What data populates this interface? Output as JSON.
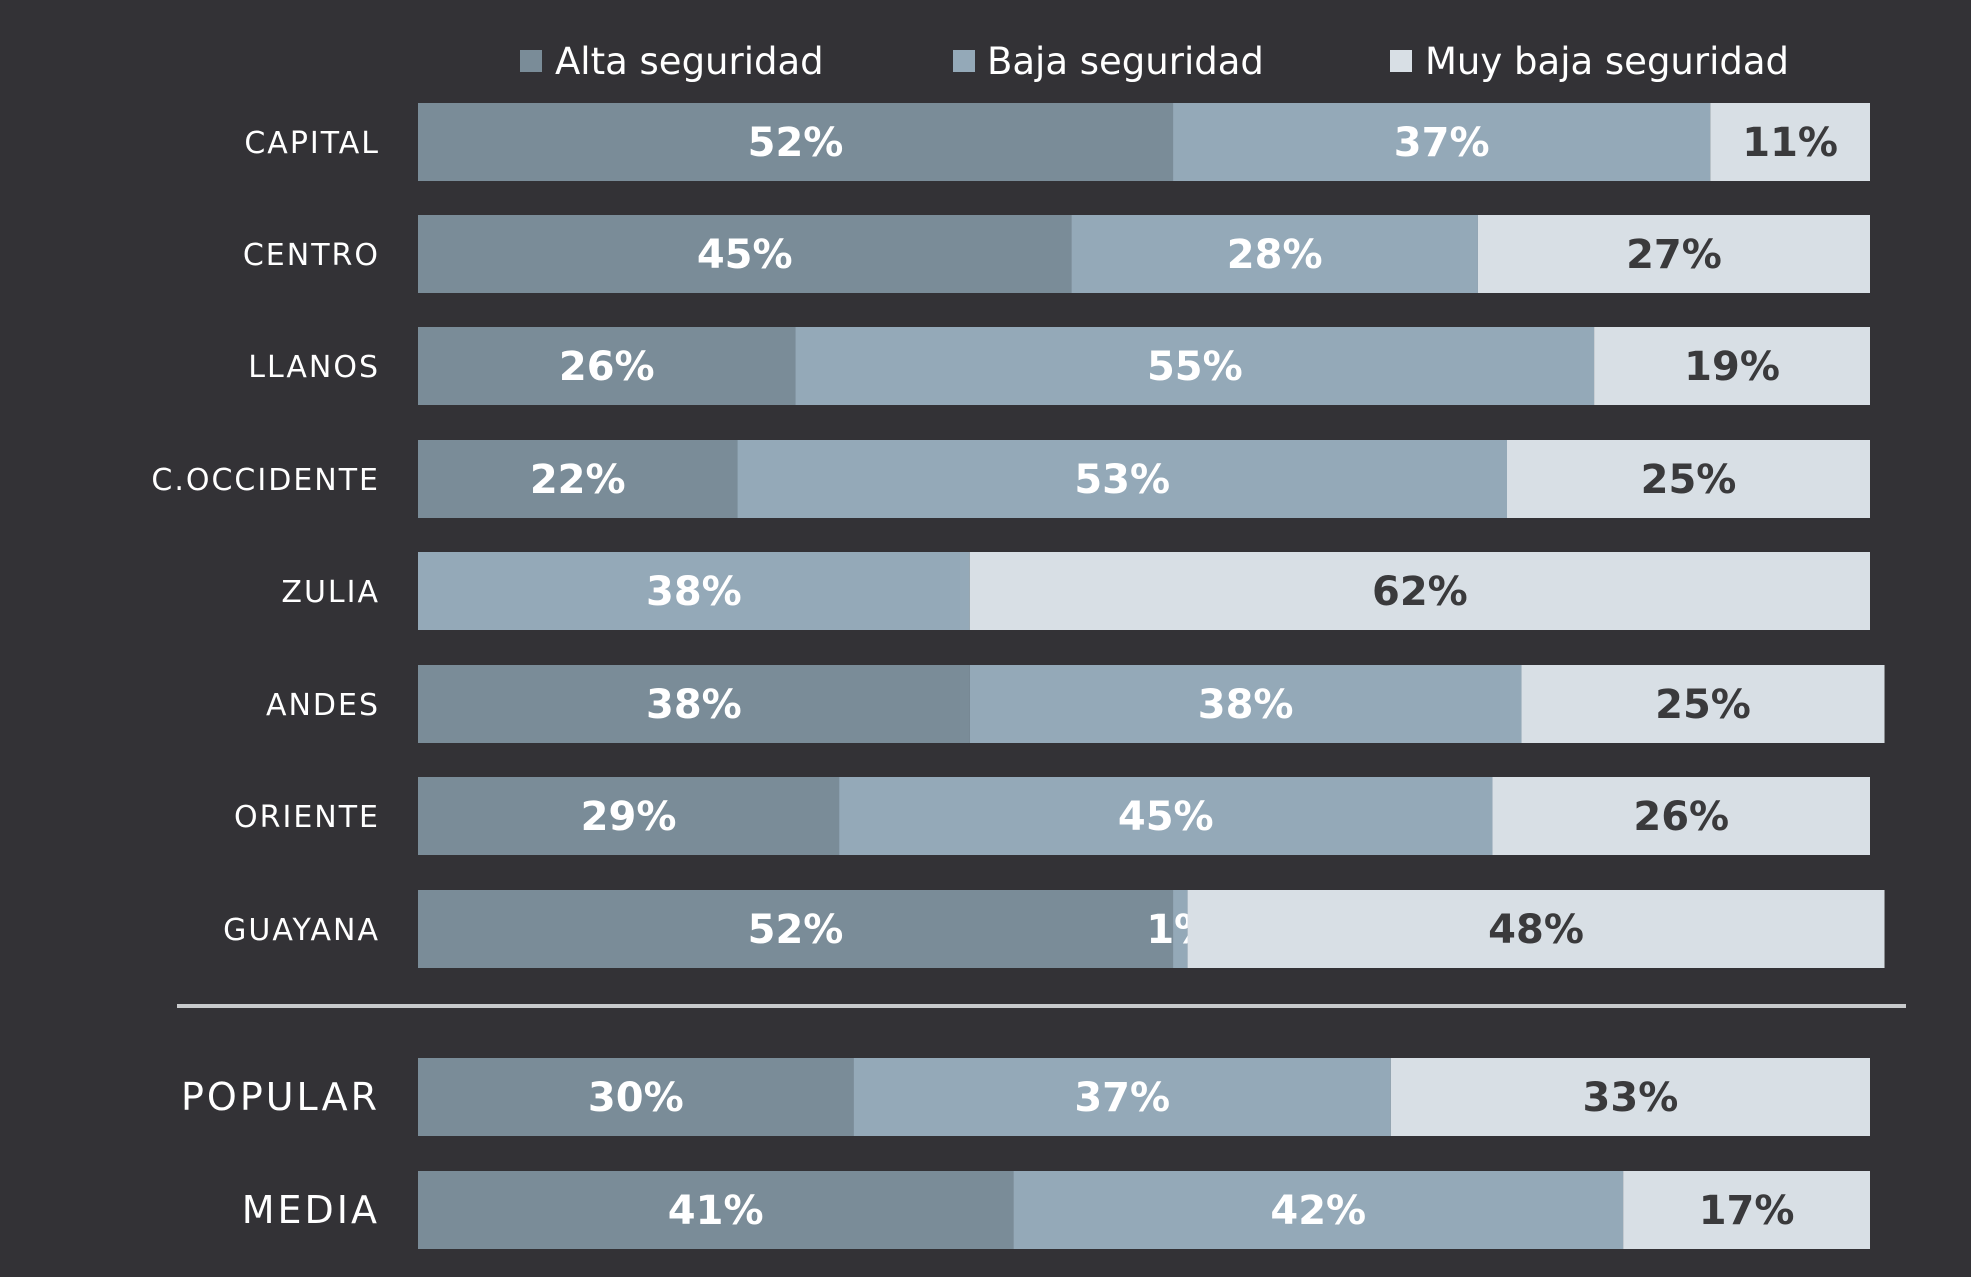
{
  "chart_data": {
    "type": "bar",
    "orientation": "horizontal",
    "stacked": true,
    "percent": true,
    "title": "",
    "xlabel": "",
    "ylabel": "",
    "xlim": [
      0,
      100
    ],
    "grid": false,
    "legend_position": "top",
    "colors": {
      "background": "#333236",
      "series": [
        "#7a8c98",
        "#94a9b8",
        "#d8dfe5"
      ],
      "value_text": [
        "#ffffff",
        "#ffffff",
        "#3a3a3c"
      ],
      "divider": "#c8cacc"
    },
    "groups": [
      {
        "categories": [
          "CAPITAL",
          "CENTRO",
          "LLANOS",
          "C.OCCIDENTE",
          "ZULIA",
          "ANDES",
          "ORIENTE",
          "GUAYANA"
        ],
        "series": [
          {
            "name": "Alta seguridad",
            "values": [
              52,
              45,
              26,
              22,
              0,
              38,
              29,
              52
            ]
          },
          {
            "name": "Baja seguridad",
            "values": [
              37,
              28,
              55,
              53,
              38,
              38,
              45,
              1
            ]
          },
          {
            "name": "Muy baja seguridad",
            "values": [
              11,
              27,
              19,
              25,
              62,
              25,
              26,
              48
            ]
          }
        ]
      },
      {
        "categories": [
          "POPULAR",
          "MEDIA"
        ],
        "series": [
          {
            "name": "Alta seguridad",
            "values": [
              30,
              41
            ]
          },
          {
            "name": "Baja seguridad",
            "values": [
              37,
              42
            ]
          },
          {
            "name": "Muy baja seguridad",
            "values": [
              33,
              17
            ]
          }
        ]
      }
    ]
  }
}
